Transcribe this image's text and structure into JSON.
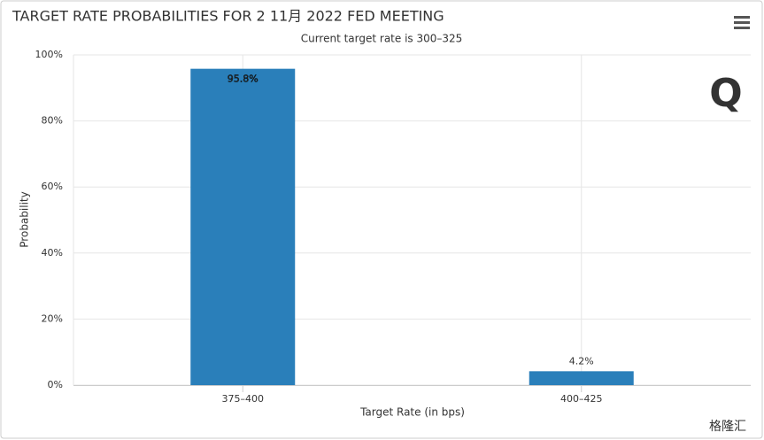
{
  "chart_data": {
    "type": "bar",
    "title": "TARGET RATE PROBABILITIES FOR 2 11月 2022 FED MEETING",
    "subtitle": "Current target rate is 300–325",
    "x_label": "Target Rate (in bps)",
    "y_label": "Probability",
    "categories": [
      "375–400",
      "400–425"
    ],
    "values": [
      95.8,
      4.2
    ],
    "value_labels": [
      "95.8%",
      "4.2%"
    ],
    "color": "#2a7fba",
    "ylim": [
      0,
      100
    ],
    "yticks": [
      {
        "value": 0,
        "label": "0%"
      },
      {
        "value": 20,
        "label": "20%"
      },
      {
        "value": 40,
        "label": "40%"
      },
      {
        "value": 60,
        "label": "60%"
      },
      {
        "value": 80,
        "label": "80%"
      },
      {
        "value": 100,
        "label": "100%"
      }
    ],
    "grid": true,
    "watermark": "格隆汇"
  }
}
